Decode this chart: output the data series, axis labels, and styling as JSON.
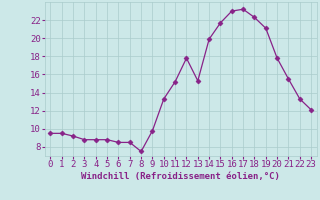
{
  "x": [
    0,
    1,
    2,
    3,
    4,
    5,
    6,
    7,
    8,
    9,
    10,
    11,
    12,
    13,
    14,
    15,
    16,
    17,
    18,
    19,
    20,
    21,
    22,
    23
  ],
  "y": [
    9.5,
    9.5,
    9.2,
    8.8,
    8.8,
    8.8,
    8.5,
    8.5,
    7.5,
    9.8,
    13.3,
    15.2,
    17.8,
    15.3,
    19.9,
    21.7,
    23.0,
    23.2,
    22.3,
    21.1,
    17.8,
    15.5,
    13.3,
    12.1
  ],
  "line_color": "#882288",
  "marker": "D",
  "marker_size": 2.5,
  "bg_color": "#cce8e8",
  "grid_color": "#aacccc",
  "xlabel": "Windchill (Refroidissement éolien,°C)",
  "ylim": [
    7,
    24
  ],
  "yticks": [
    8,
    10,
    12,
    14,
    16,
    18,
    20,
    22
  ],
  "xticks": [
    0,
    1,
    2,
    3,
    4,
    5,
    6,
    7,
    8,
    9,
    10,
    11,
    12,
    13,
    14,
    15,
    16,
    17,
    18,
    19,
    20,
    21,
    22,
    23
  ],
  "label_color": "#882288",
  "tick_color": "#882288",
  "xlabel_fontsize": 6.5,
  "tick_fontsize": 6.5
}
